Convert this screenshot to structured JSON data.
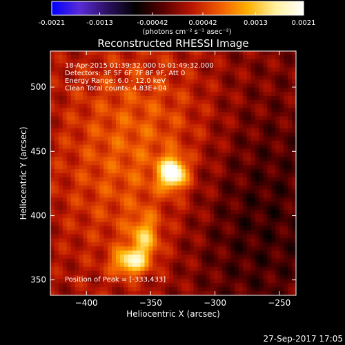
{
  "chart_data": {
    "type": "heatmap",
    "title": "Reconstructed RHESSI Image",
    "xlabel": "Heliocentric X (arcsec)",
    "ylabel": "Heliocentric Y (arcsec)",
    "xlim": [
      -428,
      -237
    ],
    "ylim": [
      338,
      528
    ],
    "x_ticks": [
      -400,
      -350,
      -300,
      -250
    ],
    "y_ticks": [
      350,
      400,
      450,
      500
    ],
    "colorbar": {
      "min": -0.0021,
      "max": 0.0021,
      "ticks": [
        "-0.0021",
        "-0.0013",
        "-0.00042",
        "0.00042",
        "0.0013",
        "0.0021"
      ],
      "unit_label": "(photons cm⁻² s⁻¹ asec⁻²)",
      "colors": [
        "#0000ff",
        "#5a2bd6",
        "#2a1060",
        "#000000",
        "#5a0000",
        "#b81500",
        "#f05a00",
        "#ffb000",
        "#fff2a0",
        "#ffffff"
      ]
    },
    "annotations": [
      "18-Apr-2015 01:39:32.000 to 01:49:32.000",
      "Detectors: 3F 5F 6F 7F 8F 9F, Att 0",
      "Energy Range: 6.0 - 12.0 keV",
      "Clean     Total counts: 4.83E+04"
    ],
    "peak_label": "Position of Peak = [-333,433]",
    "peak": [
      -333,
      433
    ],
    "sources": [
      {
        "x": -333,
        "y": 433,
        "value": 0.0021
      },
      {
        "x": -366,
        "y": 364,
        "value": 0.0014
      },
      {
        "x": -355,
        "y": 382,
        "value": 0.001
      }
    ],
    "grid": false
  },
  "footer_date": "27-Sep-2017 17:05"
}
